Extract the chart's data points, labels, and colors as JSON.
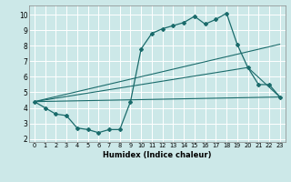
{
  "xlabel": "Humidex (Indice chaleur)",
  "bg_color": "#cce8e8",
  "line_color": "#1a6b6b",
  "grid_color": "#ffffff",
  "xlim": [
    -0.5,
    23.5
  ],
  "ylim": [
    1.8,
    10.6
  ],
  "yticks": [
    2,
    3,
    4,
    5,
    6,
    7,
    8,
    9,
    10
  ],
  "xticks": [
    0,
    1,
    2,
    3,
    4,
    5,
    6,
    7,
    8,
    9,
    10,
    11,
    12,
    13,
    14,
    15,
    16,
    17,
    18,
    19,
    20,
    21,
    22,
    23
  ],
  "line1_x": [
    0,
    1,
    2,
    3,
    4,
    5,
    6,
    7,
    8,
    9,
    10,
    11,
    12,
    13,
    14,
    15,
    16,
    17,
    18,
    19,
    20,
    21,
    22,
    23
  ],
  "line1_y": [
    4.4,
    4.0,
    3.6,
    3.5,
    2.7,
    2.6,
    2.4,
    2.6,
    2.6,
    4.4,
    7.8,
    8.8,
    9.1,
    9.3,
    9.5,
    9.9,
    9.4,
    9.7,
    10.1,
    8.1,
    6.6,
    5.5,
    5.5,
    4.7
  ],
  "line2_x": [
    0,
    23
  ],
  "line2_y": [
    4.4,
    4.7
  ],
  "line3_x": [
    0,
    23
  ],
  "line3_y": [
    4.4,
    8.1
  ],
  "line4_x": [
    0,
    20,
    23
  ],
  "line4_y": [
    4.4,
    6.6,
    4.7
  ]
}
